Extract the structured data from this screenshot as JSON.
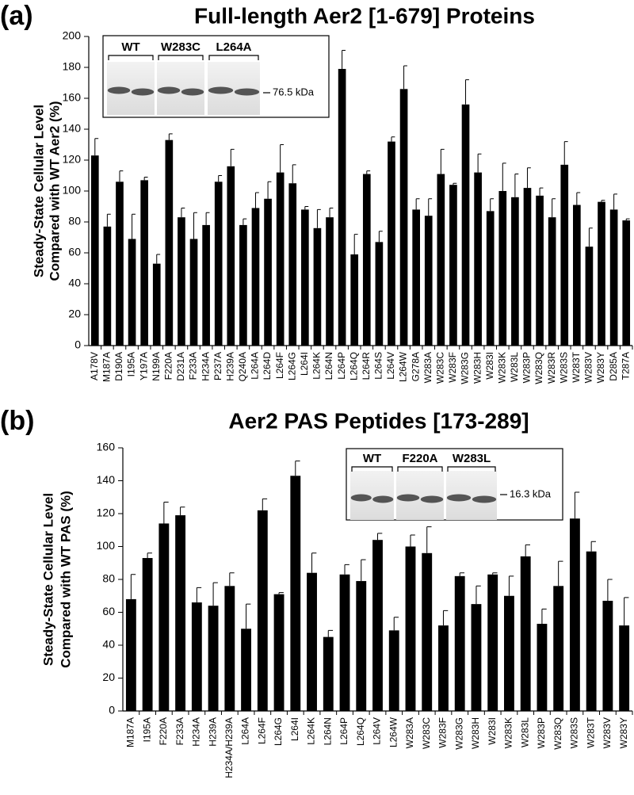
{
  "chart_data": [
    {
      "type": "bar",
      "panel_label": "(a)",
      "title": "Full-length Aer2 [1-679] Proteins",
      "ylabel": [
        "Steady-State Cellular Level",
        "Compared with WT Aer2 (%)"
      ],
      "categories": [
        "A178V",
        "M187A",
        "D190A",
        "I195A",
        "Y197A",
        "N199A",
        "F220A",
        "D231A",
        "F233A",
        "H234A",
        "P237A",
        "H239A",
        "Q240A",
        "L264A",
        "L264D",
        "L264F",
        "L264G",
        "L264I",
        "L264K",
        "L264N",
        "L264P",
        "L264Q",
        "L264R",
        "L264S",
        "L264V",
        "L264W",
        "G278A",
        "W283A",
        "W283C",
        "W283F",
        "W283G",
        "W283H",
        "W283I",
        "W283K",
        "W283L",
        "W283P",
        "W283Q",
        "W283R",
        "W283S",
        "W283T",
        "W283V",
        "W283Y",
        "D285A",
        "T287A"
      ],
      "values": [
        123,
        77,
        106,
        69,
        107,
        53,
        133,
        83,
        69,
        78,
        106,
        116,
        78,
        89,
        95,
        112,
        105,
        88,
        76,
        83,
        179,
        59,
        111,
        67,
        132,
        166,
        88,
        84,
        111,
        104,
        156,
        112,
        87,
        100,
        96,
        102,
        97,
        83,
        117,
        91,
        64,
        93,
        88,
        81
      ],
      "errors": [
        11,
        8,
        7,
        16,
        2,
        6,
        4,
        6,
        17,
        8,
        4,
        11,
        4,
        10,
        11,
        18,
        12,
        2,
        12,
        6,
        12,
        13,
        2,
        7,
        3,
        15,
        7,
        11,
        16,
        1,
        16,
        12,
        8,
        18,
        15,
        13,
        5,
        12,
        15,
        8,
        12,
        1,
        10,
        1
      ],
      "color": "#000000",
      "ylim": [
        0,
        200
      ],
      "yticks": [
        0,
        20,
        40,
        60,
        80,
        100,
        120,
        140,
        160,
        180,
        200
      ],
      "inset": {
        "lanes": [
          "WT",
          "W283C",
          "L264A"
        ],
        "marker": "76.5 kDa"
      }
    },
    {
      "type": "bar",
      "panel_label": "(b)",
      "title": "Aer2 PAS Peptides [173-289]",
      "ylabel": [
        "Steady-State Cellular Level",
        "Compared with WT PAS (%)"
      ],
      "categories": [
        "M187A",
        "I195A",
        "F220A",
        "F233A",
        "H234A",
        "H239A",
        "H234A/H239A",
        "L264A",
        "L264F",
        "L264G",
        "L264I",
        "L264K",
        "L264N",
        "L264P",
        "L264Q",
        "L264V",
        "L264W",
        "W283A",
        "W283C",
        "W283F",
        "W283G",
        "W283H",
        "W283I",
        "W283K",
        "W283L",
        "W283P",
        "W283Q",
        "W283S",
        "W283T",
        "W283V",
        "W283Y"
      ],
      "values": [
        68,
        93,
        114,
        119,
        66,
        64,
        76,
        50,
        122,
        71,
        143,
        84,
        45,
        83,
        79,
        104,
        49,
        100,
        96,
        52,
        82,
        65,
        83,
        70,
        94,
        53,
        76,
        117,
        97,
        67,
        52
      ],
      "errors": [
        15,
        3,
        13,
        5,
        9,
        14,
        8,
        15,
        7,
        1,
        9,
        12,
        4,
        6,
        13,
        4,
        8,
        7,
        16,
        9,
        2,
        11,
        1,
        12,
        7,
        9,
        15,
        16,
        6,
        13,
        17
      ],
      "color": "#000000",
      "ylim": [
        0,
        160
      ],
      "yticks": [
        0,
        20,
        40,
        60,
        80,
        100,
        120,
        140,
        160
      ],
      "inset": {
        "lanes": [
          "WT",
          "F220A",
          "W283L"
        ],
        "marker": "16.3 kDa"
      }
    }
  ]
}
